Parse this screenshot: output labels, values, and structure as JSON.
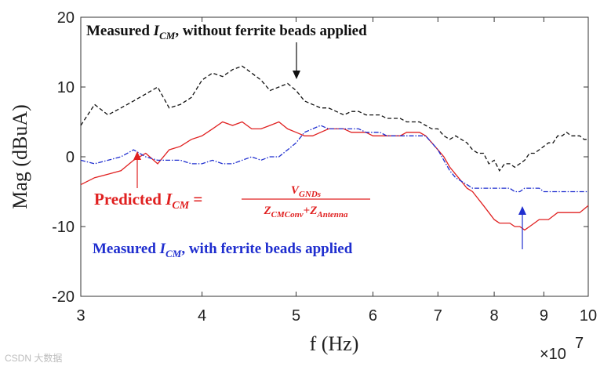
{
  "chart_data": {
    "type": "line",
    "title": "",
    "xlabel": "f (Hz)",
    "ylabel": "Mag (dBuA)",
    "x_scale": "log",
    "x_exponent_label": "×10",
    "x_exponent_power": "7",
    "xlim": [
      30000000,
      100000000
    ],
    "ylim": [
      -20,
      20
    ],
    "x_ticks": [
      30000000,
      40000000,
      50000000,
      60000000,
      70000000,
      80000000,
      90000000,
      100000000
    ],
    "x_tick_labels": [
      "3",
      "4",
      "5",
      "6",
      "7",
      "8",
      "9",
      "10"
    ],
    "y_ticks": [
      20,
      10,
      0,
      -10,
      -20
    ],
    "y_tick_labels": [
      "20",
      "10",
      "0",
      "-10",
      "-20"
    ],
    "grid": false,
    "series": [
      {
        "color": "#111111",
        "dash": "dashed",
        "x": [
          30000000,
          31000000,
          32000000,
          33000000,
          34000000,
          35000000,
          36000000,
          37000000,
          38000000,
          39000000,
          40000000,
          41000000,
          42000000,
          43000000,
          44000000,
          45000000,
          46000000,
          47000000,
          48000000,
          49000000,
          50000000,
          51000000,
          52000000,
          53000000,
          54000000,
          55000000,
          56000000,
          57000000,
          58000000,
          59000000,
          60000000,
          61000000,
          62000000,
          63000000,
          64000000,
          65000000,
          66000000,
          67000000,
          68000000,
          69000000,
          70000000,
          71000000,
          72000000,
          73000000,
          74000000,
          75000000,
          76000000,
          77000000,
          78000000,
          79000000,
          80000000,
          81000000,
          82000000,
          83000000,
          84000000,
          85000000,
          86000000,
          87000000,
          88000000,
          89000000,
          90000000,
          91000000,
          92000000,
          93000000,
          94000000,
          95000000,
          96000000,
          97000000,
          98000000,
          99000000,
          100000000
        ],
        "y": [
          4.5,
          7.5,
          6,
          7,
          8,
          9,
          10,
          7,
          7.5,
          8.5,
          11,
          12,
          11.5,
          12.5,
          13,
          12,
          11,
          9.5,
          10,
          10.5,
          9.5,
          8,
          7.5,
          7,
          7,
          6.5,
          6,
          6.5,
          6.5,
          6,
          6,
          6,
          5.5,
          5.5,
          5.5,
          5,
          5,
          5,
          4.5,
          4,
          4,
          3,
          2.5,
          3,
          2.5,
          2,
          1,
          0.5,
          0.5,
          -1,
          -0.5,
          -2,
          -1,
          -1,
          -1.5,
          -1,
          -0.5,
          0.5,
          0.5,
          1,
          1.5,
          2,
          2,
          3,
          3,
          3.5,
          3,
          3,
          3,
          2.5,
          2.5
        ]
      },
      {
        "color": "#e02020",
        "dash": "solid",
        "x": [
          30000000,
          31000000,
          32000000,
          33000000,
          34000000,
          35000000,
          36000000,
          37000000,
          38000000,
          39000000,
          40000000,
          41000000,
          42000000,
          43000000,
          44000000,
          45000000,
          46000000,
          47000000,
          48000000,
          49000000,
          50000000,
          51000000,
          52000000,
          53000000,
          54000000,
          55000000,
          56000000,
          57000000,
          58000000,
          59000000,
          60000000,
          61000000,
          62000000,
          63000000,
          64000000,
          65000000,
          66000000,
          67000000,
          68000000,
          69000000,
          70000000,
          71000000,
          72000000,
          73000000,
          74000000,
          75000000,
          76000000,
          77000000,
          78000000,
          79000000,
          80000000,
          81000000,
          82000000,
          83000000,
          84000000,
          85000000,
          86000000,
          87000000,
          88000000,
          89000000,
          90000000,
          91000000,
          92000000,
          93000000,
          94000000,
          95000000,
          96000000,
          97000000,
          98000000,
          99000000,
          100000000
        ],
        "y": [
          -4,
          -3,
          -2.5,
          -2,
          -0.5,
          0.5,
          -1,
          1,
          1.5,
          2.5,
          3,
          4,
          5,
          4.5,
          5,
          4,
          4,
          4.5,
          5,
          4,
          3.5,
          3,
          3,
          3.5,
          4,
          4,
          4,
          3.5,
          3.5,
          3.5,
          3,
          3,
          3,
          3,
          3,
          3.5,
          3.5,
          3.5,
          3,
          2,
          1,
          0,
          -1.5,
          -2.5,
          -3.5,
          -4.5,
          -5,
          -6,
          -7,
          -8,
          -9,
          -9.5,
          -9.5,
          -9.5,
          -10,
          -10,
          -10.5,
          -10,
          -9.5,
          -9,
          -9,
          -9,
          -8.5,
          -8,
          -8,
          -8,
          -8,
          -8,
          -8,
          -7.5,
          -7
        ]
      },
      {
        "color": "#1f2ecf",
        "dash": "dashdot",
        "x": [
          30000000,
          31000000,
          32000000,
          33000000,
          34000000,
          35000000,
          36000000,
          37000000,
          38000000,
          39000000,
          40000000,
          41000000,
          42000000,
          43000000,
          44000000,
          45000000,
          46000000,
          47000000,
          48000000,
          49000000,
          50000000,
          51000000,
          52000000,
          53000000,
          54000000,
          55000000,
          56000000,
          57000000,
          58000000,
          59000000,
          60000000,
          61000000,
          62000000,
          63000000,
          64000000,
          65000000,
          66000000,
          67000000,
          68000000,
          69000000,
          70000000,
          71000000,
          72000000,
          73000000,
          74000000,
          75000000,
          76000000,
          77000000,
          78000000,
          79000000,
          80000000,
          81000000,
          82000000,
          83000000,
          84000000,
          85000000,
          86000000,
          87000000,
          88000000,
          89000000,
          90000000,
          91000000,
          92000000,
          93000000,
          94000000,
          95000000,
          96000000,
          97000000,
          98000000,
          99000000,
          100000000
        ],
        "y": [
          -0.5,
          -1,
          -0.5,
          0,
          1,
          0,
          -0.5,
          -0.5,
          -0.5,
          -1,
          -1,
          -0.5,
          -1,
          -1,
          -0.5,
          0,
          -0.5,
          0,
          0,
          1,
          2,
          3.5,
          4,
          4.5,
          4,
          4,
          4,
          4,
          4,
          3.5,
          3.5,
          3.5,
          3,
          3,
          3,
          3,
          3,
          3,
          3,
          2,
          1,
          -0.5,
          -2,
          -3,
          -3.5,
          -4,
          -4.5,
          -4.5,
          -4.5,
          -4.5,
          -4.5,
          -4.5,
          -4.5,
          -4.5,
          -5,
          -5,
          -4.5,
          -4.5,
          -4.5,
          -4.5,
          -5,
          -5,
          -5,
          -5,
          -5,
          -5,
          -5,
          -5,
          -5,
          -5,
          -5
        ]
      }
    ],
    "annotations": [
      {
        "id": "black",
        "prefix": "Measured ",
        "var": "I",
        "sub": "CM",
        "suffix": ", without ferrite beads applied",
        "color": "#111111"
      },
      {
        "id": "red",
        "prefix": "Predicted ",
        "var": "I",
        "sub": "CM",
        "eq": " = ",
        "num_var": "V",
        "num_sub": "GNDs",
        "den1_var": "Z",
        "den1_sub": "CMConv",
        "den_plus": "+",
        "den2_var": "Z",
        "den2_sub": "Antenna",
        "color": "#e02020"
      },
      {
        "id": "blue",
        "prefix": "Measured ",
        "var": "I",
        "sub": "CM",
        "suffix": ", with ferrite beads applied",
        "color": "#1f2ecf"
      }
    ]
  },
  "watermark": "CSDN 大数据"
}
